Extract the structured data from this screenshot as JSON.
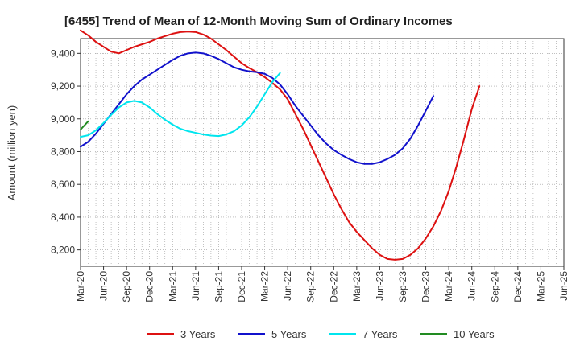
{
  "chart_data": {
    "type": "line",
    "title": "[6455]  Trend of Mean of 12-Month Moving Sum of Ordinary Incomes",
    "ylabel": "Amount (million yen)",
    "xlabel": "",
    "x_tick_labels": [
      "Mar-20",
      "Jun-20",
      "Sep-20",
      "Dec-20",
      "Mar-21",
      "Jun-21",
      "Sep-21",
      "Dec-21",
      "Mar-22",
      "Jun-22",
      "Sep-22",
      "Dec-22",
      "Mar-23",
      "Jun-23",
      "Sep-23",
      "Dec-23",
      "Mar-24",
      "Jun-24",
      "Sep-24",
      "Dec-24",
      "Mar-25",
      "Jun-25"
    ],
    "y_ticks": [
      8200,
      8400,
      8600,
      8800,
      9000,
      9200,
      9400
    ],
    "y_tick_labels": [
      "8,200",
      "8,400",
      "8,600",
      "8,800",
      "9,000",
      "9,200",
      "9,400"
    ],
    "ylim": [
      8100,
      9490
    ],
    "grid": true,
    "legend_position": "bottom",
    "series": [
      {
        "name": "3 Years",
        "color": "#dd1111",
        "points": [
          [
            0,
            9540
          ],
          [
            1,
            9510
          ],
          [
            2,
            9470
          ],
          [
            3,
            9440
          ],
          [
            4,
            9410
          ],
          [
            5,
            9400
          ],
          [
            6,
            9420
          ],
          [
            7,
            9440
          ],
          [
            8,
            9455
          ],
          [
            9,
            9470
          ],
          [
            10,
            9490
          ],
          [
            11,
            9505
          ],
          [
            12,
            9520
          ],
          [
            13,
            9530
          ],
          [
            14,
            9533
          ],
          [
            15,
            9530
          ],
          [
            16,
            9515
          ],
          [
            17,
            9490
          ],
          [
            18,
            9455
          ],
          [
            19,
            9420
          ],
          [
            20,
            9380
          ],
          [
            21,
            9340
          ],
          [
            22,
            9310
          ],
          [
            23,
            9285
          ],
          [
            24,
            9255
          ],
          [
            25,
            9220
          ],
          [
            26,
            9180
          ],
          [
            27,
            9120
          ],
          [
            28,
            9030
          ],
          [
            29,
            8940
          ],
          [
            30,
            8840
          ],
          [
            31,
            8740
          ],
          [
            32,
            8640
          ],
          [
            33,
            8540
          ],
          [
            34,
            8450
          ],
          [
            35,
            8370
          ],
          [
            36,
            8310
          ],
          [
            37,
            8260
          ],
          [
            38,
            8210
          ],
          [
            39,
            8170
          ],
          [
            40,
            8145
          ],
          [
            41,
            8140
          ],
          [
            42,
            8145
          ],
          [
            43,
            8170
          ],
          [
            44,
            8210
          ],
          [
            45,
            8270
          ],
          [
            46,
            8345
          ],
          [
            47,
            8440
          ],
          [
            48,
            8560
          ],
          [
            49,
            8710
          ],
          [
            50,
            8880
          ],
          [
            51,
            9060
          ],
          [
            52,
            9200
          ]
        ]
      },
      {
        "name": "5 Years",
        "color": "#1111cc",
        "points": [
          [
            0,
            8830
          ],
          [
            1,
            8860
          ],
          [
            2,
            8910
          ],
          [
            3,
            8970
          ],
          [
            4,
            9030
          ],
          [
            5,
            9090
          ],
          [
            6,
            9150
          ],
          [
            7,
            9200
          ],
          [
            8,
            9240
          ],
          [
            9,
            9270
          ],
          [
            10,
            9300
          ],
          [
            11,
            9330
          ],
          [
            12,
            9360
          ],
          [
            13,
            9385
          ],
          [
            14,
            9400
          ],
          [
            15,
            9405
          ],
          [
            16,
            9400
          ],
          [
            17,
            9385
          ],
          [
            18,
            9365
          ],
          [
            19,
            9340
          ],
          [
            20,
            9315
          ],
          [
            21,
            9300
          ],
          [
            22,
            9290
          ],
          [
            23,
            9285
          ],
          [
            24,
            9275
          ],
          [
            25,
            9250
          ],
          [
            26,
            9210
          ],
          [
            27,
            9150
          ],
          [
            28,
            9080
          ],
          [
            29,
            9020
          ],
          [
            30,
            8960
          ],
          [
            31,
            8900
          ],
          [
            32,
            8850
          ],
          [
            33,
            8810
          ],
          [
            34,
            8780
          ],
          [
            35,
            8755
          ],
          [
            36,
            8735
          ],
          [
            37,
            8725
          ],
          [
            38,
            8725
          ],
          [
            39,
            8735
          ],
          [
            40,
            8755
          ],
          [
            41,
            8780
          ],
          [
            42,
            8820
          ],
          [
            43,
            8880
          ],
          [
            44,
            8960
          ],
          [
            45,
            9050
          ],
          [
            46,
            9140
          ]
        ]
      },
      {
        "name": "7 Years",
        "color": "#00e5ee",
        "points": [
          [
            0,
            8890
          ],
          [
            1,
            8900
          ],
          [
            2,
            8930
          ],
          [
            3,
            8975
          ],
          [
            4,
            9025
          ],
          [
            5,
            9070
          ],
          [
            6,
            9100
          ],
          [
            7,
            9110
          ],
          [
            8,
            9100
          ],
          [
            9,
            9070
          ],
          [
            10,
            9030
          ],
          [
            11,
            8995
          ],
          [
            12,
            8965
          ],
          [
            13,
            8940
          ],
          [
            14,
            8925
          ],
          [
            15,
            8915
          ],
          [
            16,
            8905
          ],
          [
            17,
            8898
          ],
          [
            18,
            8895
          ],
          [
            19,
            8905
          ],
          [
            20,
            8925
          ],
          [
            21,
            8960
          ],
          [
            22,
            9010
          ],
          [
            23,
            9075
          ],
          [
            24,
            9150
          ],
          [
            25,
            9225
          ],
          [
            26,
            9280
          ]
        ]
      },
      {
        "name": "10 Years",
        "color": "#228b22",
        "points": [
          [
            0,
            8935
          ],
          [
            1,
            8985
          ]
        ]
      }
    ]
  }
}
